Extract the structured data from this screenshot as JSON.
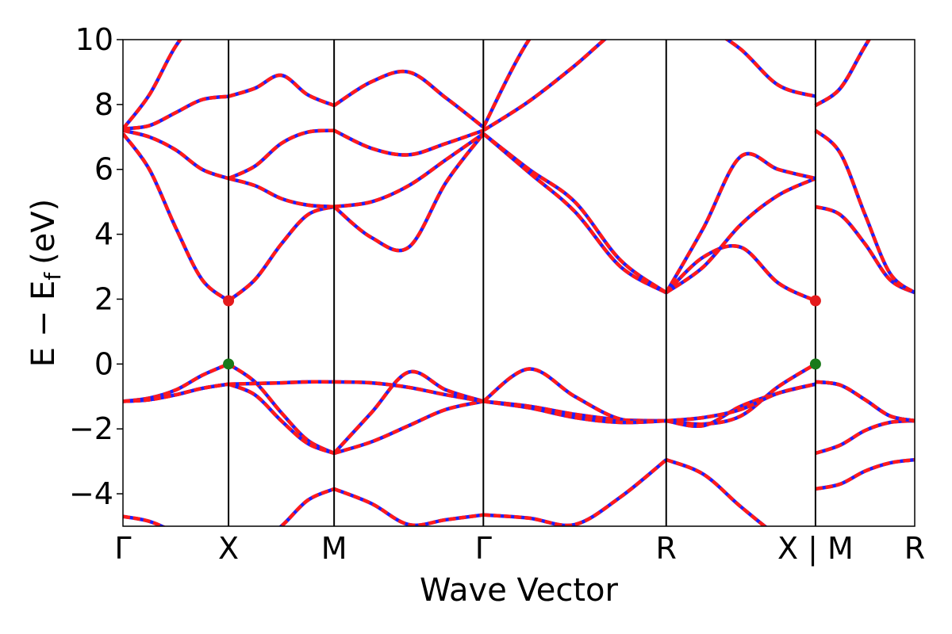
{
  "chart_data": {
    "type": "line",
    "xlabel": "Wave Vector",
    "ylabel": "E − E",
    "ylabel_sub": "f",
    "ylabel_unit": "(eV)",
    "ylim": [
      -5,
      10
    ],
    "yticks": [
      -4,
      -2,
      0,
      2,
      4,
      6,
      8,
      10
    ],
    "ytick_labels": [
      "−4",
      "−2",
      "0",
      "2",
      "4",
      "6",
      "8",
      "10"
    ],
    "xlim": [
      0,
      7.5
    ],
    "kpoints": [
      {
        "x": 0.0,
        "label": "Γ"
      },
      {
        "x": 1.0,
        "label": "X"
      },
      {
        "x": 2.0,
        "label": "M"
      },
      {
        "x": 3.414,
        "label": "Γ"
      },
      {
        "x": 5.146,
        "label": "R"
      },
      {
        "x": 6.56,
        "label": "X | M"
      },
      {
        "x": 7.5,
        "label": "R"
      }
    ],
    "segments": [
      {
        "x0": 0.0,
        "x1": 1.0,
        "bands": [
          [
            -4.7,
            -4.85,
            -5.2,
            -5.6,
            -5.9
          ],
          [
            -1.15,
            -1.05,
            -0.8,
            -0.35,
            0.0
          ],
          [
            -1.15,
            -1.1,
            -0.95,
            -0.75,
            -0.62
          ],
          [
            -1.15,
            -1.1,
            -0.95,
            -0.75,
            -0.62
          ],
          [
            7.1,
            6.0,
            4.2,
            2.6,
            1.95
          ],
          [
            7.2,
            7.0,
            6.6,
            6.0,
            5.72
          ],
          [
            7.25,
            7.35,
            7.75,
            8.15,
            8.25
          ],
          [
            7.25,
            8.3,
            9.8,
            10.8,
            11.5
          ]
        ]
      },
      {
        "x0": 1.0,
        "x1": 2.0,
        "bands": [
          [
            -5.9,
            -5.6,
            -5.0,
            -4.2,
            -3.85
          ],
          [
            0.0,
            -0.55,
            -1.5,
            -2.35,
            -2.75
          ],
          [
            -0.62,
            -0.95,
            -1.75,
            -2.45,
            -2.75
          ],
          [
            -0.62,
            -0.6,
            -0.58,
            -0.55,
            -0.55
          ],
          [
            1.95,
            2.6,
            3.7,
            4.6,
            4.85
          ],
          [
            5.72,
            5.5,
            5.1,
            4.9,
            4.85
          ],
          [
            5.72,
            6.1,
            6.8,
            7.15,
            7.2
          ],
          [
            8.25,
            8.5,
            8.9,
            8.3,
            7.97
          ]
        ]
      },
      {
        "x0": 2.0,
        "x1": 3.414,
        "bands": [
          [
            -3.85,
            -4.3,
            -4.95,
            -4.8,
            -4.65
          ],
          [
            -2.75,
            -2.4,
            -1.9,
            -1.4,
            -1.15
          ],
          [
            -2.75,
            -1.5,
            -0.25,
            -0.8,
            -1.15
          ],
          [
            -0.55,
            -0.58,
            -0.72,
            -0.95,
            -1.15
          ],
          [
            4.85,
            3.9,
            3.6,
            5.6,
            7.1
          ],
          [
            4.85,
            5.0,
            5.5,
            6.3,
            7.1
          ],
          [
            7.2,
            6.65,
            6.45,
            6.8,
            7.2
          ],
          [
            7.97,
            8.7,
            9.0,
            8.2,
            7.3
          ]
        ]
      },
      {
        "x0": 3.414,
        "x1": 5.146,
        "bands": [
          [
            -4.65,
            -4.75,
            -4.95,
            -4.1,
            -2.95
          ],
          [
            -1.15,
            -1.3,
            -1.55,
            -1.72,
            -1.75
          ],
          [
            -1.15,
            -0.15,
            -1.0,
            -1.7,
            -1.75
          ],
          [
            -1.15,
            -1.35,
            -1.65,
            -1.8,
            -1.75
          ],
          [
            7.1,
            5.9,
            4.7,
            3.0,
            2.2
          ],
          [
            7.1,
            6.0,
            5.0,
            3.2,
            2.2
          ],
          [
            7.2,
            8.1,
            9.2,
            10.4,
            11.2
          ],
          [
            7.3,
            10.0,
            11.5,
            11.5,
            11.5
          ]
        ]
      },
      {
        "x0": 5.146,
        "x1": 6.56,
        "bands": [
          [
            -2.95,
            -3.4,
            -4.4,
            -5.3,
            -5.9
          ],
          [
            -1.75,
            -1.85,
            -1.6,
            -0.7,
            0.0
          ],
          [
            -1.75,
            -1.9,
            -1.3,
            -0.9,
            -0.62
          ],
          [
            -1.75,
            -1.65,
            -1.4,
            -0.9,
            -0.62
          ],
          [
            2.2,
            3.3,
            3.6,
            2.5,
            1.95
          ],
          [
            2.2,
            3.0,
            4.3,
            5.2,
            5.72
          ],
          [
            2.2,
            4.2,
            6.4,
            6.0,
            5.72
          ],
          [
            11.5,
            10.5,
            9.7,
            8.6,
            8.25
          ]
        ]
      },
      {
        "x0": 6.56,
        "x1": 7.5,
        "bands": [
          [
            -3.85,
            -3.7,
            -3.3,
            -3.05,
            -2.95
          ],
          [
            -2.75,
            -2.5,
            -2.05,
            -1.8,
            -1.75
          ],
          [
            -0.55,
            -0.65,
            -1.1,
            -1.6,
            -1.75
          ],
          [
            -0.55,
            -0.65,
            -1.1,
            -1.6,
            -1.75
          ],
          [
            4.85,
            4.6,
            3.7,
            2.6,
            2.2
          ],
          [
            7.2,
            6.5,
            4.6,
            2.8,
            2.2
          ],
          [
            7.97,
            8.5,
            9.8,
            11.0,
            11.5
          ],
          [
            7.97,
            8.5,
            9.8,
            11.0,
            11.5
          ]
        ]
      }
    ],
    "markers": [
      {
        "x": 1.0,
        "y": 1.95,
        "color": "#e41a1c"
      },
      {
        "x": 1.0,
        "y": 0.0,
        "color": "#1a7a1a"
      },
      {
        "x": 6.56,
        "y": 1.95,
        "color": "#e41a1c"
      },
      {
        "x": 6.56,
        "y": 0.0,
        "color": "#1a7a1a"
      }
    ],
    "series_colors": {
      "solid": "#1f1fff",
      "dashed": "#ff1a1a"
    }
  }
}
